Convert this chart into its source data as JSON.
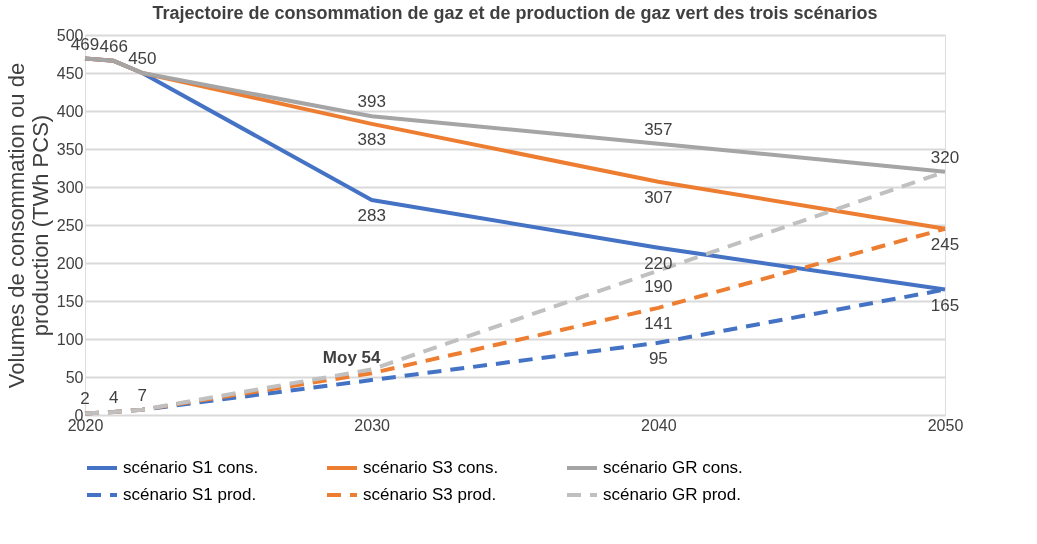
{
  "chart_data": {
    "type": "line",
    "title": "Trajectoire de consommation de gaz et de production de gaz vert des trois scénarios",
    "ylabel": "Volumes de consommation ou de production (TWh PCS)",
    "x": [
      2020,
      2021,
      2022,
      2030,
      2040,
      2050
    ],
    "xlim": [
      2020,
      2050
    ],
    "xticks": [
      2020,
      2030,
      2040,
      2050
    ],
    "ylim": [
      0,
      500
    ],
    "yticks": [
      0,
      50,
      100,
      150,
      200,
      250,
      300,
      350,
      400,
      450,
      500
    ],
    "grid": "y",
    "legend": "bottom",
    "series": [
      {
        "name": "scénario S1 cons.",
        "color": "#4472c4",
        "line_style": "solid",
        "values": [
          469,
          466,
          450,
          283,
          220,
          165
        ],
        "value_labels": [
          null,
          null,
          null,
          "283",
          "220",
          "165"
        ]
      },
      {
        "name": "scénario S3 cons.",
        "color": "#ed7d31",
        "line_style": "solid",
        "values": [
          469,
          466,
          450,
          383,
          307,
          245
        ],
        "value_labels": [
          null,
          null,
          null,
          "383",
          "307",
          "245"
        ]
      },
      {
        "name": "scénario GR cons.",
        "color": "#a5a5a5",
        "line_style": "solid",
        "values": [
          469,
          466,
          450,
          393,
          357,
          320
        ],
        "value_labels": [
          "469",
          "466",
          "450",
          "393",
          "357",
          "320"
        ]
      },
      {
        "name": "scénario S1 prod.",
        "color": "#4472c4",
        "line_style": "dashed",
        "values": [
          2,
          4,
          7,
          46,
          95,
          165
        ],
        "value_labels": [
          null,
          null,
          null,
          null,
          "95",
          null
        ]
      },
      {
        "name": "scénario S3 prod.",
        "color": "#ed7d31",
        "line_style": "dashed",
        "values": [
          2,
          4,
          7,
          55,
          141,
          245
        ],
        "value_labels": [
          null,
          null,
          null,
          null,
          "141",
          null
        ]
      },
      {
        "name": "scénario GR prod.",
        "color": "#c0c0c0",
        "line_style": "dashed",
        "values": [
          2,
          4,
          7,
          60,
          190,
          320
        ],
        "value_labels": [
          "2",
          "4",
          "7",
          null,
          "190",
          null
        ]
      }
    ],
    "annotations": [
      {
        "text": "Moy 54",
        "x": 2030,
        "y": 54
      }
    ]
  }
}
